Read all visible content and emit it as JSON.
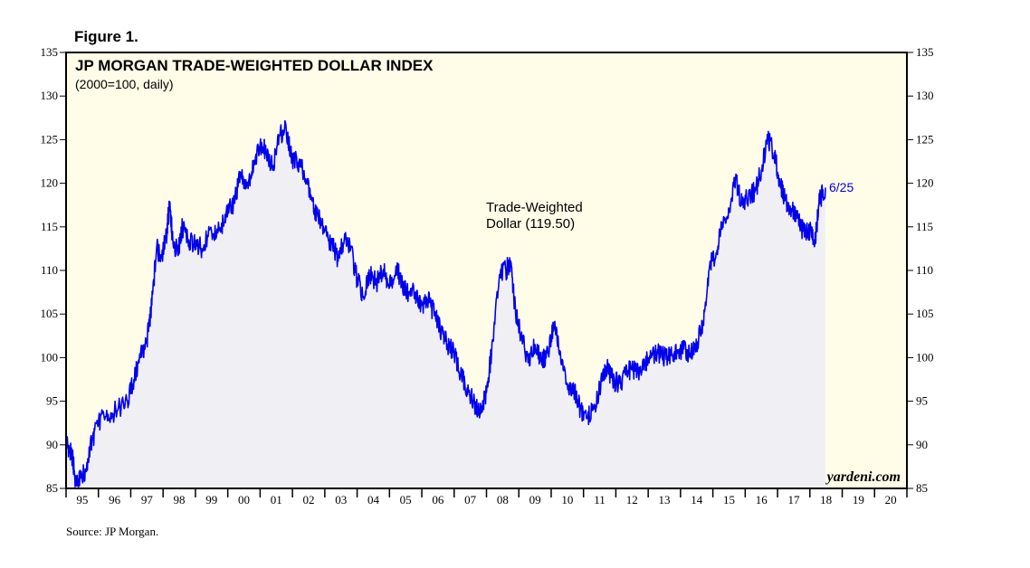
{
  "figure_label": "Figure 1.",
  "source": "Source: JP Morgan.",
  "brand": "yardeni.com",
  "colors": {
    "background": "#fffde8",
    "line": "#0000ee",
    "area": "#f0f0f4",
    "frame": "#000000"
  },
  "chart_data": {
    "type": "line",
    "title": "JP MORGAN TRADE-WEIGHTED DOLLAR INDEX",
    "subtitle": "(2000=100, daily)",
    "xlabel": "",
    "ylabel": "",
    "ylim": [
      85,
      135
    ],
    "xlim": [
      1995.0,
      2021.0
    ],
    "y_ticks": [
      85,
      90,
      95,
      100,
      105,
      110,
      115,
      120,
      125,
      130,
      135
    ],
    "x_tick_labels": [
      "95",
      "96",
      "97",
      "98",
      "99",
      "00",
      "01",
      "02",
      "03",
      "04",
      "05",
      "06",
      "07",
      "08",
      "09",
      "10",
      "11",
      "12",
      "13",
      "14",
      "15",
      "16",
      "17",
      "18",
      "19",
      "20"
    ],
    "annotation": {
      "line1": "Trade-Weighted",
      "line2": "Dollar (119.50)"
    },
    "last_label": "6/25",
    "series": [
      {
        "name": "Trade-Weighted Dollar",
        "x": [
          1995.0,
          1995.1,
          1995.2,
          1995.3,
          1995.45,
          1995.6,
          1995.8,
          1996.0,
          1996.3,
          1996.6,
          1996.9,
          1997.1,
          1997.3,
          1997.5,
          1997.65,
          1997.8,
          1997.95,
          1998.1,
          1998.2,
          1998.3,
          1998.45,
          1998.6,
          1998.8,
          1999.0,
          1999.2,
          1999.5,
          1999.8,
          2000.0,
          2000.2,
          2000.4,
          2000.6,
          2000.8,
          2001.0,
          2001.2,
          2001.4,
          2001.6,
          2001.8,
          2002.0,
          2002.2,
          2002.4,
          2002.6,
          2002.8,
          2003.0,
          2003.2,
          2003.4,
          2003.6,
          2003.8,
          2004.0,
          2004.2,
          2004.4,
          2004.6,
          2004.8,
          2005.0,
          2005.2,
          2005.4,
          2005.6,
          2005.8,
          2006.0,
          2006.2,
          2006.4,
          2006.6,
          2006.8,
          2007.0,
          2007.2,
          2007.4,
          2007.6,
          2007.8,
          2008.0,
          2008.2,
          2008.4,
          2008.6,
          2008.75,
          2008.9,
          2009.1,
          2009.3,
          2009.5,
          2009.7,
          2009.9,
          2010.1,
          2010.3,
          2010.5,
          2010.7,
          2010.9,
          2011.1,
          2011.3,
          2011.5,
          2011.7,
          2011.9,
          2012.1,
          2012.3,
          2012.5,
          2012.7,
          2012.9,
          2013.1,
          2013.3,
          2013.5,
          2013.7,
          2013.9,
          2014.1,
          2014.3,
          2014.5,
          2014.7,
          2014.9,
          2015.1,
          2015.3,
          2015.5,
          2015.7,
          2015.9,
          2016.1,
          2016.3,
          2016.5,
          2016.7,
          2016.9,
          2017.05,
          2017.2,
          2017.4,
          2017.6,
          2017.8,
          2018.0,
          2018.15,
          2018.3,
          2018.48
        ],
        "values": [
          90.5,
          89.5,
          88.5,
          85.5,
          86.2,
          87.2,
          90.5,
          92.5,
          93.5,
          94.0,
          95.0,
          97.5,
          100.0,
          102.0,
          106.0,
          112.5,
          111.5,
          114.0,
          117.5,
          113.5,
          112.0,
          115.0,
          113.5,
          113.0,
          112.5,
          114.5,
          115.0,
          116.5,
          118.0,
          121.0,
          120.0,
          122.0,
          124.5,
          123.5,
          122.0,
          125.5,
          126.5,
          122.5,
          122.5,
          120.5,
          118.0,
          116.0,
          114.5,
          113.0,
          111.5,
          113.5,
          112.5,
          109.0,
          107.0,
          109.5,
          108.5,
          110.0,
          108.0,
          110.5,
          108.5,
          107.5,
          107.5,
          106.0,
          106.5,
          105.0,
          103.0,
          101.5,
          100.5,
          98.0,
          96.5,
          95.0,
          93.5,
          96.0,
          102.0,
          109.5,
          110.0,
          111.0,
          105.0,
          102.0,
          99.5,
          101.5,
          99.5,
          100.5,
          104.0,
          99.5,
          97.0,
          96.5,
          94.0,
          93.0,
          94.0,
          96.5,
          99.0,
          97.5,
          97.0,
          98.0,
          99.0,
          98.0,
          99.5,
          100.0,
          100.5,
          100.0,
          100.5,
          100.5,
          101.0,
          100.5,
          101.5,
          104.0,
          110.5,
          112.0,
          115.5,
          117.0,
          120.5,
          117.5,
          118.5,
          119.0,
          121.5,
          125.0,
          123.5,
          120.5,
          118.5,
          117.0,
          116.0,
          114.5,
          114.5,
          113.0,
          118.0,
          119.5
        ]
      }
    ]
  }
}
